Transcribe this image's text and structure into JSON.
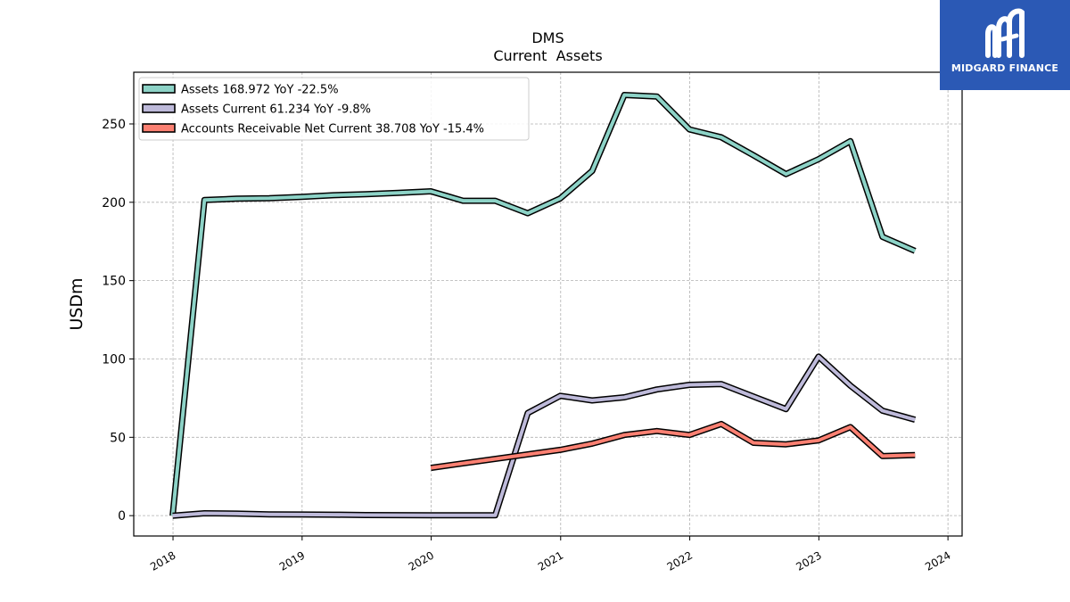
{
  "chart_data": {
    "type": "line",
    "title": "DMS",
    "subtitle": "Current  Assets",
    "ylabel": "USDm",
    "xlabel": "",
    "ylim": [
      -13,
      283
    ],
    "xlim": [
      "2017-09-12",
      "2024-02-10"
    ],
    "yticks": [
      0,
      50,
      100,
      150,
      200,
      250
    ],
    "xticks": [
      "2018",
      "2019",
      "2020",
      "2021",
      "2022",
      "2023",
      "2024"
    ],
    "grid": true,
    "legend_position": "top-left",
    "series": [
      {
        "name": "Assets  168.972 YoY -22.5%",
        "color": "#8dd3c7",
        "points": [
          [
            "2017-12-31",
            0
          ],
          [
            "2018-03-31",
            201.5
          ],
          [
            "2018-06-30",
            202.3
          ],
          [
            "2018-09-30",
            202.6
          ],
          [
            "2018-12-31",
            203.5
          ],
          [
            "2019-03-31",
            204.5
          ],
          [
            "2019-06-30",
            205.2
          ],
          [
            "2019-09-30",
            206.0
          ],
          [
            "2019-12-31",
            207.0
          ],
          [
            "2020-03-31",
            201.0
          ],
          [
            "2020-06-30",
            201.0
          ],
          [
            "2020-09-30",
            193.0
          ],
          [
            "2020-12-31",
            202.5
          ],
          [
            "2021-03-31",
            220.0
          ],
          [
            "2021-06-30",
            268.5
          ],
          [
            "2021-09-30",
            267.5
          ],
          [
            "2021-12-31",
            246.5
          ],
          [
            "2022-03-31",
            241.5
          ],
          [
            "2022-06-30",
            230.0
          ],
          [
            "2022-09-30",
            218.0
          ],
          [
            "2022-12-31",
            227.5
          ],
          [
            "2023-03-31",
            239.0
          ],
          [
            "2023-06-30",
            178.0
          ],
          [
            "2023-09-30",
            168.972
          ]
        ]
      },
      {
        "name": "Assets Current  61.234 YoY -9.8%",
        "color": "#bebada",
        "points": [
          [
            "2017-12-31",
            0
          ],
          [
            "2018-03-31",
            1.5
          ],
          [
            "2018-06-30",
            1.3
          ],
          [
            "2018-09-30",
            0.8
          ],
          [
            "2018-12-31",
            0.7
          ],
          [
            "2019-03-31",
            0.6
          ],
          [
            "2019-06-30",
            0.4
          ],
          [
            "2019-09-30",
            0.3
          ],
          [
            "2019-12-31",
            0.2
          ],
          [
            "2020-03-31",
            0.2
          ],
          [
            "2020-06-30",
            0.2
          ],
          [
            "2020-09-30",
            65.5
          ],
          [
            "2020-12-31",
            76.5
          ],
          [
            "2021-03-31",
            73.5
          ],
          [
            "2021-06-30",
            75.5
          ],
          [
            "2021-09-30",
            80.5
          ],
          [
            "2021-12-31",
            83.5
          ],
          [
            "2022-03-31",
            84.0
          ],
          [
            "2022-06-30",
            76.0
          ],
          [
            "2022-09-30",
            68.0
          ],
          [
            "2022-12-31",
            101.5
          ],
          [
            "2023-03-31",
            83.0
          ],
          [
            "2023-06-30",
            67.0
          ],
          [
            "2023-09-30",
            61.234
          ]
        ]
      },
      {
        "name": "Accounts Receivable Net Current  38.708 YoY -15.4%",
        "color": "#fb8072",
        "points": [
          [
            "2019-12-31",
            30.5
          ],
          [
            "2020-12-31",
            42.0
          ],
          [
            "2021-03-31",
            46.0
          ],
          [
            "2021-06-30",
            51.5
          ],
          [
            "2021-09-30",
            54.0
          ],
          [
            "2021-12-31",
            51.5
          ],
          [
            "2022-03-31",
            58.5
          ],
          [
            "2022-06-30",
            46.5
          ],
          [
            "2022-09-30",
            45.5
          ],
          [
            "2022-12-31",
            48.0
          ],
          [
            "2023-03-31",
            56.5
          ],
          [
            "2023-06-30",
            38.0
          ],
          [
            "2023-09-30",
            38.708
          ]
        ]
      }
    ]
  },
  "logo": {
    "text": "MIDGARD FINANCE"
  }
}
